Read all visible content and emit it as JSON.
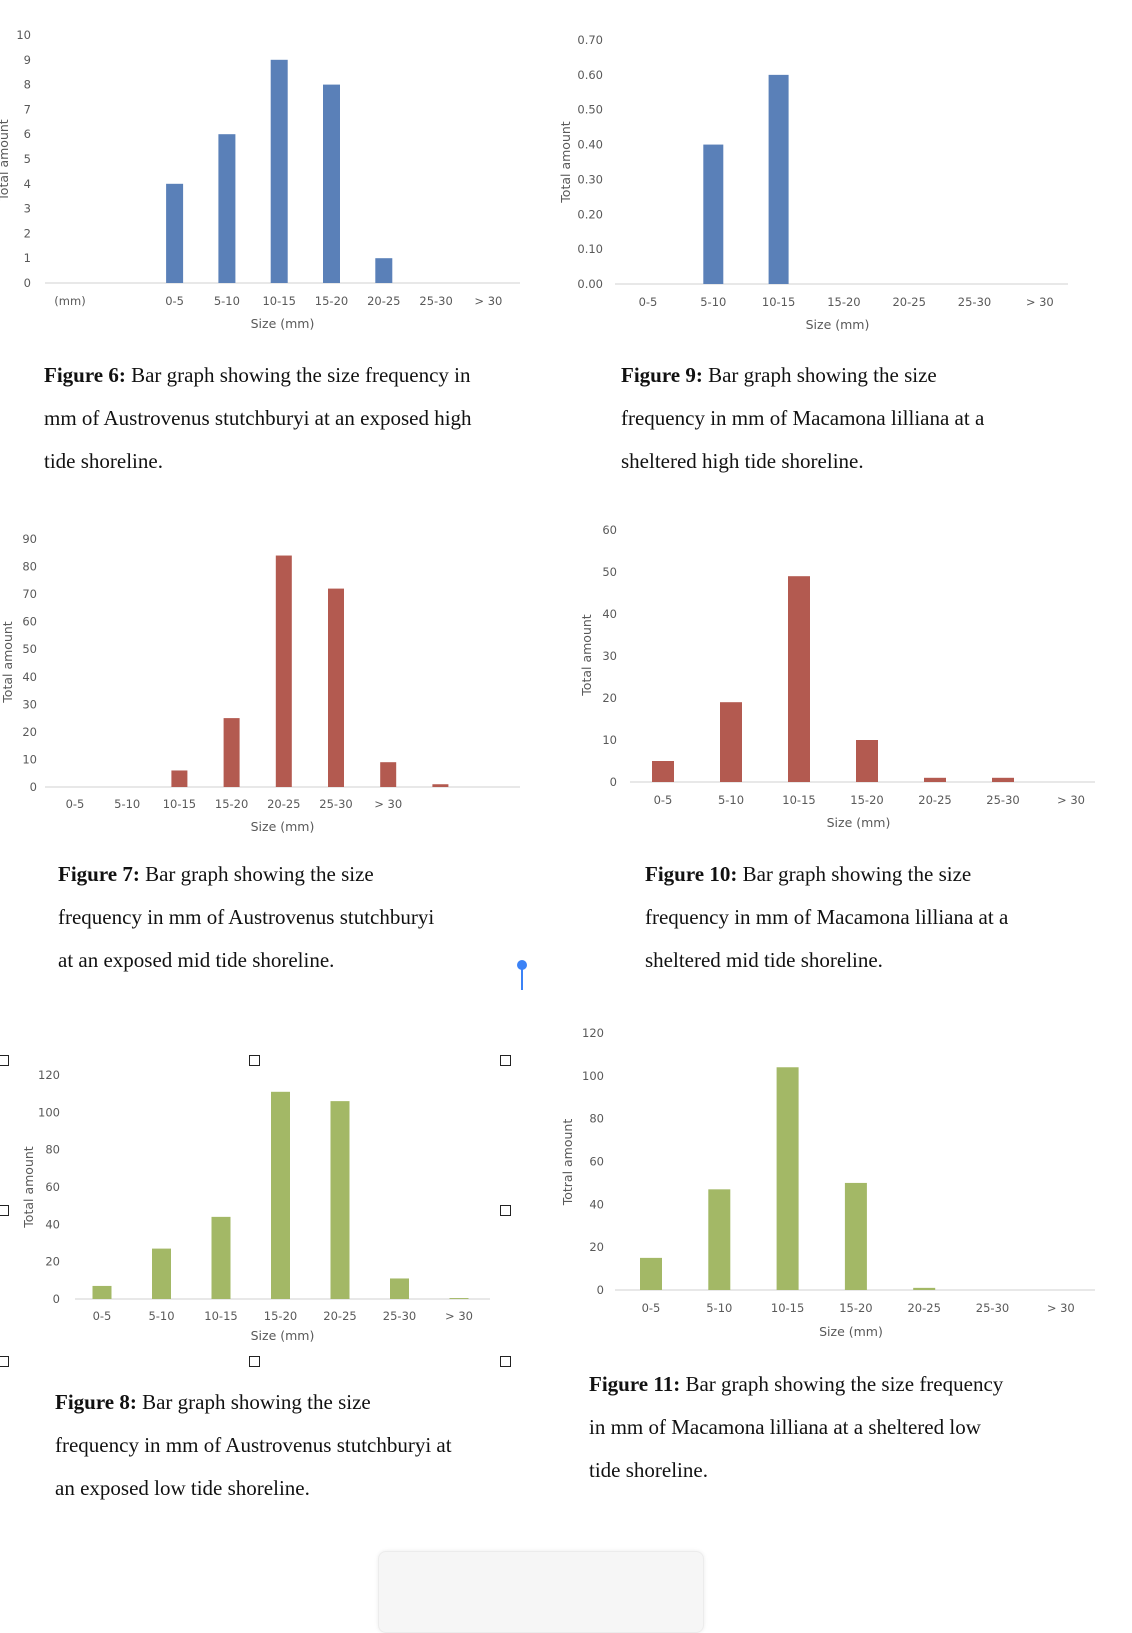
{
  "colors": {
    "blue": "#5a80b8",
    "red": "#b35a50",
    "green": "#a3b866",
    "axis": "#d9d9d9",
    "cursor": "#3b82f6"
  },
  "chart_data": [
    {
      "type": "bar",
      "figure": "Figure 6",
      "title": "",
      "xlabel": "Size (mm)",
      "ylabel": "Total amount",
      "categories": [
        "(mm)",
        "",
        "0-5",
        "5-10",
        "10-15",
        "15-20",
        "20-25",
        "25-30",
        "> 30"
      ],
      "values": [
        0,
        0,
        4,
        6,
        9,
        8,
        1,
        0,
        0
      ],
      "ylim": [
        0,
        10
      ],
      "yticks": [
        "0",
        "1",
        "2",
        "3",
        "4",
        "5",
        "6",
        "7",
        "8",
        "9",
        "10"
      ],
      "color": "blue",
      "grid": false
    },
    {
      "type": "bar",
      "figure": "Figure 9",
      "title": "",
      "xlabel": "Size (mm)",
      "ylabel": "Total amount",
      "categories": [
        "0-5",
        "5-10",
        "10-15",
        "15-20",
        "20-25",
        "25-30",
        "> 30"
      ],
      "values": [
        0,
        0.4,
        0.6,
        0,
        0,
        0,
        0
      ],
      "ylim": [
        0,
        0.7
      ],
      "yticks": [
        "0.00",
        "0.10",
        "0.20",
        "0.30",
        "0.40",
        "0.50",
        "0.60",
        "0.70"
      ],
      "color": "blue",
      "grid": false
    },
    {
      "type": "bar",
      "figure": "Figure 7",
      "title": "",
      "xlabel": "Size (mm)",
      "ylabel": "Total amount",
      "categories": [
        "0-5",
        "5-10",
        "10-15",
        "15-20",
        "20-25",
        "25-30",
        "> 30",
        ""
      ],
      "values": [
        0,
        0,
        6,
        25,
        84,
        72,
        9,
        1
      ],
      "ylim": [
        0,
        90
      ],
      "yticks": [
        "0",
        "10",
        "20",
        "30",
        "40",
        "50",
        "60",
        "70",
        "80",
        "90"
      ],
      "color": "red",
      "grid": false
    },
    {
      "type": "bar",
      "figure": "Figure 10",
      "title": "",
      "xlabel": "Size (mm)",
      "ylabel": "Total amount",
      "categories": [
        "0-5",
        "5-10",
        "10-15",
        "15-20",
        "20-25",
        "25-30",
        "> 30"
      ],
      "values": [
        5,
        19,
        49,
        10,
        1,
        1,
        0
      ],
      "ylim": [
        0,
        60
      ],
      "yticks": [
        "0",
        "10",
        "20",
        "30",
        "40",
        "50",
        "60"
      ],
      "color": "red",
      "grid": false
    },
    {
      "type": "bar",
      "figure": "Figure 8",
      "title": "",
      "xlabel": "Size (mm)",
      "ylabel": "Total amount",
      "categories": [
        "0-5",
        "5-10",
        "10-15",
        "15-20",
        "20-25",
        "25-30",
        "> 30"
      ],
      "values": [
        7,
        27,
        44,
        111,
        106,
        11,
        0.5
      ],
      "ylim": [
        0,
        120
      ],
      "yticks": [
        "0",
        "20",
        "40",
        "60",
        "80",
        "100",
        "120"
      ],
      "color": "green",
      "grid": false
    },
    {
      "type": "bar",
      "figure": "Figure 11",
      "title": "",
      "xlabel": "Size (mm)",
      "ylabel": "Totral amount",
      "categories": [
        "0-5",
        "5-10",
        "10-15",
        "15-20",
        "20-25",
        "25-30",
        "> 30"
      ],
      "values": [
        15,
        47,
        104,
        50,
        1,
        0,
        0
      ],
      "ylim": [
        0,
        120
      ],
      "yticks": [
        "0",
        "20",
        "40",
        "60",
        "80",
        "100",
        "120"
      ],
      "color": "green",
      "grid": false
    }
  ],
  "captions": [
    {
      "label": "Figure 6:",
      "lines": [
        " Bar graph showing the size frequency in",
        "mm of Austrovenus stutchburyi at an exposed high",
        "tide shoreline."
      ]
    },
    {
      "label": "Figure 9:",
      "lines": [
        " Bar graph showing the size",
        "frequency in mm of Macamona lilliana at a",
        "sheltered high tide shoreline."
      ]
    },
    {
      "label": "Figure 7:",
      "lines": [
        " Bar graph showing the size",
        "frequency in mm of Austrovenus stutchburyi",
        "at an exposed mid tide shoreline."
      ]
    },
    {
      "label": "Figure 10:",
      "lines": [
        " Bar graph showing the size",
        "frequency in mm of Macamona lilliana at a",
        "sheltered mid tide shoreline."
      ]
    },
    {
      "label": "Figure 8:",
      "lines": [
        " Bar graph showing the size",
        "frequency in mm of Austrovenus stutchburyi at",
        "an exposed low tide shoreline."
      ]
    },
    {
      "label": "Figure 11:",
      "lines": [
        " Bar graph showing the size frequency",
        "in mm of Macamona lilliana at a sheltered low",
        "tide shoreline."
      ]
    }
  ]
}
